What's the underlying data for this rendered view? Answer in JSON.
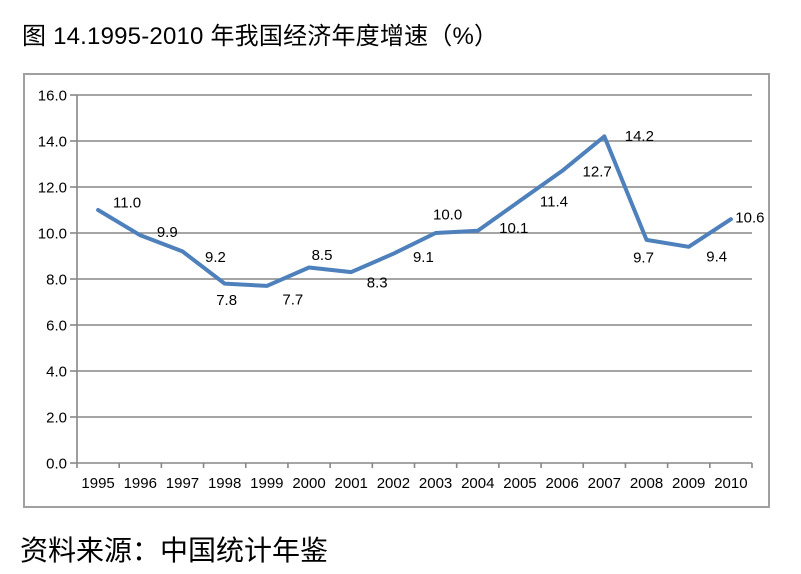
{
  "page": {
    "title": "图 14.1995-2010 年我国经济年度增速（%）",
    "source_note": "资料来源：中国统计年鉴"
  },
  "chart_data": {
    "type": "line",
    "title": "图 14.1995-2010 年我国经济年度增速（%）",
    "source": "资料来源：中国统计年鉴",
    "categories": [
      "1995",
      "1996",
      "1997",
      "1998",
      "1999",
      "2000",
      "2001",
      "2002",
      "2003",
      "2004",
      "2005",
      "2006",
      "2007",
      "2008",
      "2009",
      "2010"
    ],
    "values": [
      11.0,
      9.9,
      9.2,
      7.8,
      7.7,
      8.5,
      8.3,
      9.1,
      10.0,
      10.1,
      11.4,
      12.7,
      14.2,
      9.7,
      9.4,
      10.6
    ],
    "data_labels": [
      "11.0",
      "9.9",
      "9.2",
      "7.8",
      "7.7",
      "8.5",
      "8.3",
      "9.1",
      "10.0",
      "10.1",
      "11.4",
      "12.7",
      "14.2",
      "9.7",
      "9.4",
      "10.6"
    ],
    "xlabel": "",
    "ylabel": "",
    "ylim": [
      0,
      16
    ],
    "ytick_step": 2,
    "ytick_labels": [
      "0.0",
      "2.0",
      "4.0",
      "6.0",
      "8.0",
      "10.0",
      "12.0",
      "14.0",
      "16.0"
    ],
    "grid": true,
    "legend": "none",
    "line_color": "#4E80BC",
    "gridline_color": "#878787",
    "axis_color": "#878787",
    "frame_color": "#A0A0A0",
    "text_color": "#000000"
  }
}
